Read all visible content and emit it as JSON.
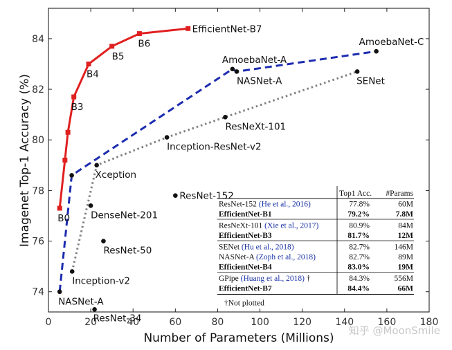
{
  "chart_data": {
    "type": "scatter",
    "xlabel": "Number of Parameters (Millions)",
    "ylabel": "Imagenet Top-1 Accuracy (%)",
    "xlim": [
      0,
      180
    ],
    "ylim": [
      73.2,
      85.2
    ],
    "x_ticks": [
      0,
      20,
      40,
      60,
      80,
      100,
      120,
      140,
      160,
      180
    ],
    "y_ticks": [
      74,
      76,
      78,
      80,
      82,
      84
    ],
    "grid": false,
    "series": [
      {
        "style": "solid",
        "color": "#e02020",
        "marker": "square",
        "points": [
          {
            "x": 5.3,
            "y": 77.3,
            "label": "B0"
          },
          {
            "x": 7.8,
            "y": 79.2,
            "label": ""
          },
          {
            "x": 9.2,
            "y": 80.3,
            "label": ""
          },
          {
            "x": 12,
            "y": 81.7,
            "label": "B3"
          },
          {
            "x": 19,
            "y": 83.0,
            "label": "B4"
          },
          {
            "x": 30,
            "y": 83.7,
            "label": "B5"
          },
          {
            "x": 43,
            "y": 84.2,
            "label": "B6"
          },
          {
            "x": 66,
            "y": 84.4,
            "label": "EfficientNet-B7"
          }
        ]
      },
      {
        "style": "dashed",
        "color": "#1c2cb0",
        "marker": "circle",
        "points": [
          {
            "x": 5.3,
            "y": 74.0,
            "label": "NASNet-A"
          },
          {
            "x": 11,
            "y": 78.6,
            "label": ""
          },
          {
            "x": 87,
            "y": 82.8,
            "label": "AmoebaNet-A"
          },
          {
            "x": 89,
            "y": 82.7,
            "label": "NASNet-A"
          },
          {
            "x": 155,
            "y": 83.5,
            "label": "AmoebaNet-C"
          }
        ]
      },
      {
        "style": "dotted",
        "color": "#808080",
        "marker": "circle",
        "points": [
          {
            "x": 11.2,
            "y": 74.8,
            "label": "Inception-v2"
          },
          {
            "x": 22.8,
            "y": 79.0,
            "label": "Xception"
          },
          {
            "x": 56,
            "y": 80.1,
            "label": "Inception-ResNet-v2"
          },
          {
            "x": 83.6,
            "y": 80.9,
            "label": "ResNeXt-101"
          },
          {
            "x": 146,
            "y": 82.7,
            "label": "SENet"
          }
        ]
      },
      {
        "style": "none",
        "color": "#111111",
        "marker": "circle",
        "points": [
          {
            "x": 60,
            "y": 77.8,
            "label": "ResNet-152"
          },
          {
            "x": 20,
            "y": 77.4,
            "label": "DenseNet-201"
          },
          {
            "x": 26,
            "y": 76.0,
            "label": "ResNet-50"
          },
          {
            "x": 21.8,
            "y": 73.3,
            "label": "ResNet-34"
          }
        ]
      }
    ],
    "table": {
      "headers": [
        "",
        "Top1 Acc.",
        "#Params"
      ],
      "groups": [
        [
          {
            "model": "ResNet-152 ",
            "cite": "(He et al., 2016)",
            "dagger": "",
            "acc": "77.8%",
            "params": "60M",
            "bold": false
          },
          {
            "model": "EfficientNet-B1",
            "cite": "",
            "dagger": "",
            "acc": "79.2%",
            "params": "7.8M",
            "bold": true
          }
        ],
        [
          {
            "model": "ResNeXt-101 ",
            "cite": "(Xie et al., 2017)",
            "dagger": "",
            "acc": "80.9%",
            "params": "84M",
            "bold": false
          },
          {
            "model": "EfficientNet-B3",
            "cite": "",
            "dagger": "",
            "acc": "81.7%",
            "params": "12M",
            "bold": true
          }
        ],
        [
          {
            "model": "SENet ",
            "cite": "(Hu et al., 2018)",
            "dagger": "",
            "acc": "82.7%",
            "params": "146M",
            "bold": false
          },
          {
            "model": "NASNet-A ",
            "cite": "(Zoph et al., 2018)",
            "dagger": "",
            "acc": "82.7%",
            "params": "89M",
            "bold": false
          },
          {
            "model": "EfficientNet-B4",
            "cite": "",
            "dagger": "",
            "acc": "83.0%",
            "params": "19M",
            "bold": true
          }
        ],
        [
          {
            "model": "GPipe ",
            "cite": "(Huang et al., 2018)",
            "dagger": " †",
            "acc": "84.3%",
            "params": "556M",
            "bold": false
          },
          {
            "model": "EfficientNet-B7",
            "cite": "",
            "dagger": "",
            "acc": "84.4%",
            "params": "66M",
            "bold": true
          }
        ]
      ],
      "footnote": "†Not plotted"
    }
  },
  "watermark": "知乎 @MoonSmile"
}
